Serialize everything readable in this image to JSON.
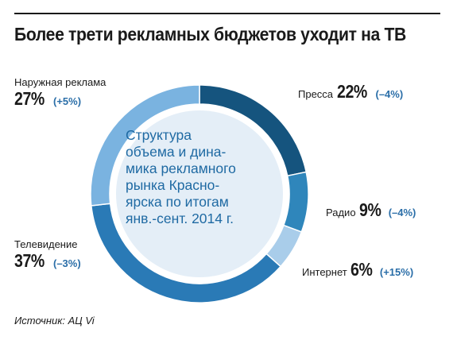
{
  "title": "Более трети рекламных бюджетов уходит на ТВ",
  "center_text": [
    "Структура",
    "объема и дина-",
    "мика рекламного",
    "рынка Красно-",
    "ярска по итогам",
    "янв.-сент. 2014 г."
  ],
  "source": "Источник: АЦ Vi",
  "colors": {
    "press": "#15547e",
    "radio": "#2f86bb",
    "internet": "#a9cdea",
    "tv": "#2a7ab6",
    "outdoor": "#7ab3e0",
    "center_fill": "#e4eef7",
    "accent_text": "#2a6ea8"
  },
  "chart_data": {
    "type": "pie",
    "donut": true,
    "series": [
      {
        "name": "Пресса",
        "value": 22,
        "value_label": "22%",
        "change_label": "(–4%)"
      },
      {
        "name": "Радио",
        "value": 9,
        "value_label": "9%",
        "change_label": "(–4%)"
      },
      {
        "name": "Интернет",
        "value": 6,
        "value_label": "6%",
        "change_label": "(+15%)"
      },
      {
        "name": "Телевидение",
        "value": 37,
        "value_label": "37%",
        "change_label": "(–3%)"
      },
      {
        "name": "Наружная реклама",
        "value": 27,
        "value_label": "27%",
        "change_label": "(+5%)"
      }
    ]
  }
}
